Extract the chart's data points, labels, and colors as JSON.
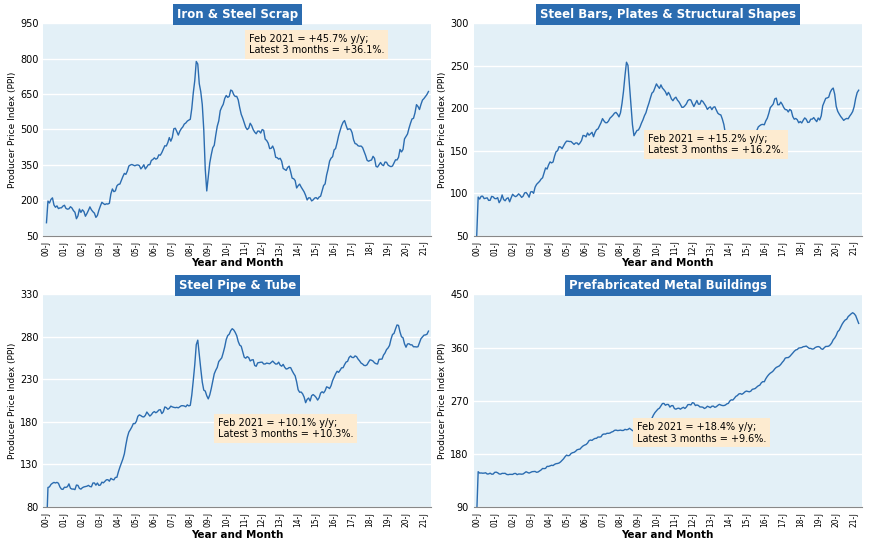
{
  "charts": [
    {
      "title": "Iron & Steel Scrap",
      "ylabel": "Producer Price Index (PPI)",
      "xlabel": "Year and Month",
      "ylim": [
        50,
        950
      ],
      "yticks": [
        50,
        200,
        350,
        500,
        650,
        800,
        950
      ],
      "annotation": "Feb 2021 = +45.7% y/y;\nLatest 3 months = +36.1%.",
      "ann_axes": [
        0.53,
        0.95
      ],
      "subplot_idx": 1
    },
    {
      "title": "Steel Bars, Plates & Structural Shapes",
      "ylabel": "Producer Price Index (PPI)",
      "xlabel": "Year and Month",
      "ylim": [
        50,
        300
      ],
      "yticks": [
        50,
        100,
        150,
        200,
        250,
        300
      ],
      "annotation": "Feb 2021 = +15.2% y/y;\nLatest 3 months = +16.2%.",
      "ann_axes": [
        0.45,
        0.48
      ],
      "subplot_idx": 2
    },
    {
      "title": "Steel Pipe & Tube",
      "ylabel": "Producer Price Index (PPI)",
      "xlabel": "Year and Month",
      "ylim": [
        80,
        330
      ],
      "yticks": [
        80,
        130,
        180,
        230,
        280,
        330
      ],
      "annotation": "Feb 2021 = +10.1% y/y;\nLatest 3 months = +10.3%.",
      "ann_axes": [
        0.45,
        0.42
      ],
      "subplot_idx": 3
    },
    {
      "title": "Prefabricated Metal Buildings",
      "ylabel": "Producer Price Index (PPI)",
      "xlabel": "Year and Month",
      "ylim": [
        90,
        450
      ],
      "yticks": [
        90,
        180,
        270,
        360,
        450
      ],
      "annotation": "Feb 2021 = +18.4% y/y;\nLatest 3 months = +9.6%.",
      "ann_axes": [
        0.42,
        0.4
      ],
      "subplot_idx": 4
    }
  ],
  "line_color": "#2B6CB0",
  "bg_color": "#E3F0F7",
  "title_bg": "#2B6CB0",
  "title_fg": "#FFFFFF",
  "ann_bg": "#FDEBD0",
  "fig_bg": "#FFFFFF",
  "xtick_labels": [
    "00-J",
    "01-J",
    "02-J",
    "03-J",
    "04-J",
    "05-J",
    "06-J",
    "07-J",
    "08-J",
    "09-J",
    "10-J",
    "11-J",
    "12-J",
    "13-J",
    "14-J",
    "15-J",
    "16-J",
    "17-J",
    "18-J",
    "19-J",
    "20-J",
    "21-J"
  ],
  "n_points": 256
}
